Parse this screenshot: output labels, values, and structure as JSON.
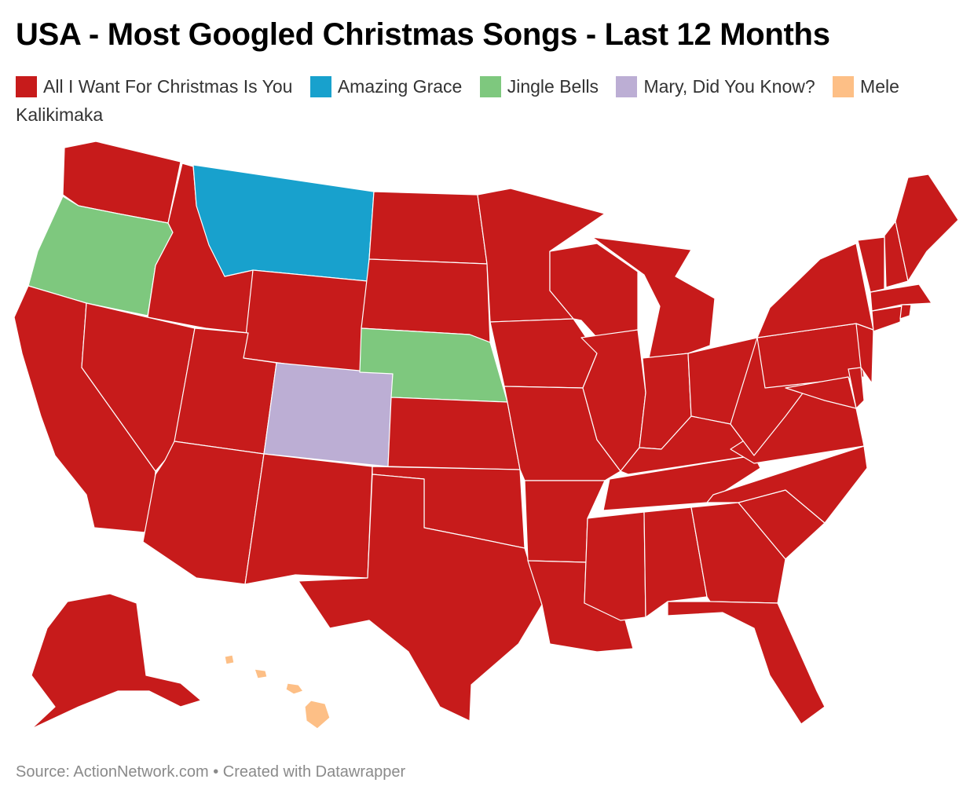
{
  "title": "USA - Most Googled Christmas Songs - Last 12 Months",
  "legend": [
    {
      "label": "All I Want For Christmas Is You",
      "color": "#c71b1b"
    },
    {
      "label": "Amazing Grace",
      "color": "#18a1cd"
    },
    {
      "label": "Jingle Bells",
      "color": "#7ec87e"
    },
    {
      "label": "Mary, Did You Know?",
      "color": "#bcaed4"
    },
    {
      "label": "Mele Kalikimaka",
      "color": "#fdbf86"
    }
  ],
  "footer": {
    "source": "Source: ActionNetwork.com",
    "separator": "•",
    "credit": "Created with Datawrapper"
  },
  "map_data": {
    "type": "choropleth",
    "region": "United States",
    "default_category": "All I Want For Christmas Is You",
    "categories_by_state": {
      "Montana": "Amazing Grace",
      "Oregon": "Jingle Bells",
      "Nebraska": "Jingle Bells",
      "Colorado": "Mary, Did You Know?",
      "Hawaii": "Mele Kalikimaka"
    }
  }
}
